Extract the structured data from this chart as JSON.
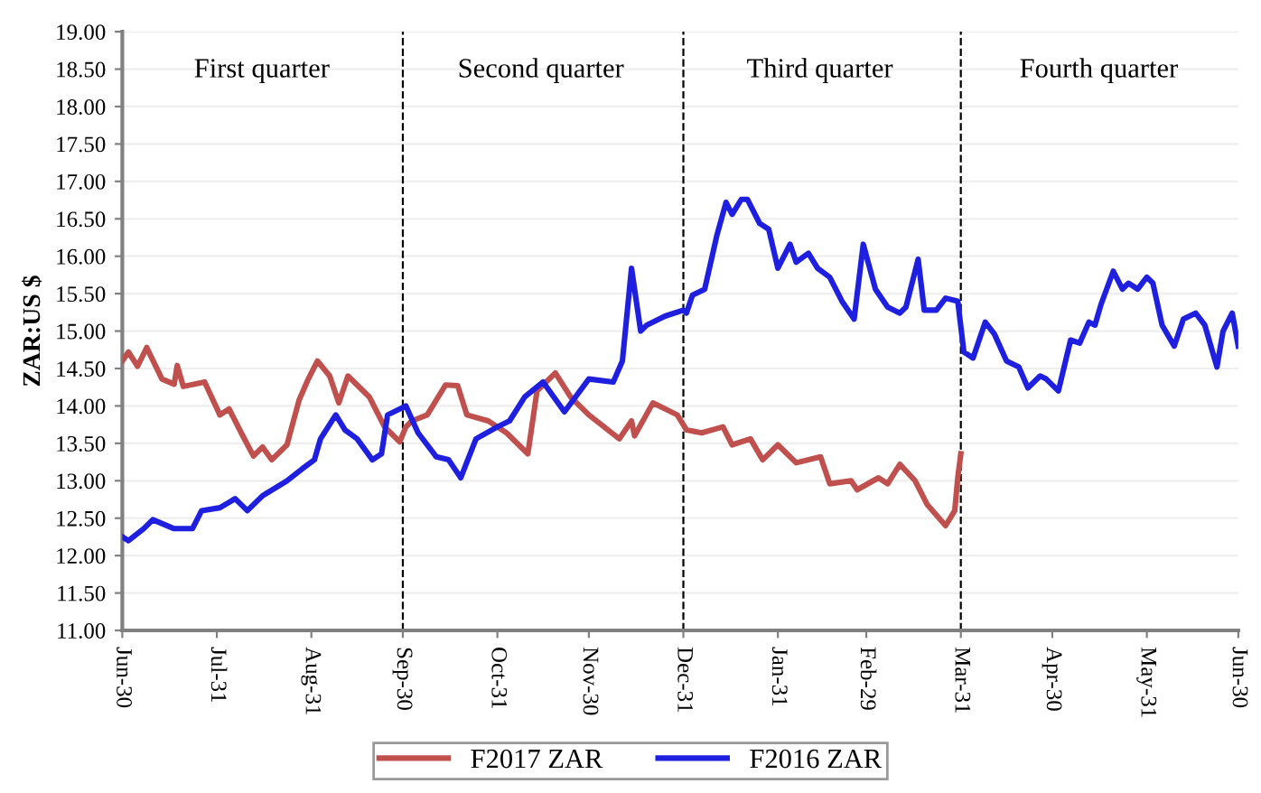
{
  "chart_data": {
    "type": "line",
    "ylabel": "ZAR:US $",
    "xlim": [
      "2015-06-30",
      "2016-06-30"
    ],
    "xticks": [
      {
        "value": "2015-06-30",
        "label": "Jun-30"
      },
      {
        "value": "2015-07-31",
        "label": "Jul-31"
      },
      {
        "value": "2015-08-31",
        "label": "Aug-31"
      },
      {
        "value": "2015-09-30",
        "label": "Sep-30"
      },
      {
        "value": "2015-10-31",
        "label": "Oct-31"
      },
      {
        "value": "2015-11-30",
        "label": "Nov-30"
      },
      {
        "value": "2015-12-31",
        "label": "Dec-31"
      },
      {
        "value": "2016-01-31",
        "label": "Jan-31"
      },
      {
        "value": "2016-02-29",
        "label": "Feb-29"
      },
      {
        "value": "2016-03-31",
        "label": "Mar-31"
      },
      {
        "value": "2016-04-30",
        "label": "Apr-30"
      },
      {
        "value": "2016-05-31",
        "label": "May-31"
      },
      {
        "value": "2016-06-30",
        "label": "Jun-30"
      }
    ],
    "ylim": [
      11,
      19
    ],
    "yticks": [
      {
        "value": 11,
        "label": "11.00"
      },
      {
        "value": 11.5,
        "label": "11.50"
      },
      {
        "value": 12,
        "label": "12.00"
      },
      {
        "value": 12.5,
        "label": "12.50"
      },
      {
        "value": 13,
        "label": "13.00"
      },
      {
        "value": 13.5,
        "label": "13.50"
      },
      {
        "value": 14,
        "label": "14.00"
      },
      {
        "value": 14.5,
        "label": "14.50"
      },
      {
        "value": 15,
        "label": "15.00"
      },
      {
        "value": 15.5,
        "label": "15.50"
      },
      {
        "value": 16,
        "label": "16.00"
      },
      {
        "value": 16.5,
        "label": "16.50"
      },
      {
        "value": 17,
        "label": "17.00"
      },
      {
        "value": 17.5,
        "label": "17.50"
      },
      {
        "value": 18,
        "label": "18.00"
      },
      {
        "value": 18.5,
        "label": "18.50"
      },
      {
        "value": 19,
        "label": "19.00"
      }
    ],
    "grid": "y",
    "legend": "bottom",
    "line_style": "solid",
    "ref_lines": [
      {
        "axis": "x",
        "value": "2015-09-30",
        "color": "#000000",
        "line_style": "dashed"
      },
      {
        "axis": "x",
        "value": "2015-12-31",
        "color": "#000000",
        "line_style": "dashed"
      },
      {
        "axis": "x",
        "value": "2016-03-31",
        "color": "#000000",
        "line_style": "dashed"
      }
    ],
    "annotations": [
      "First quarter",
      "Second quarter",
      "Third quarter",
      "Fourth quarter"
    ],
    "series": [
      {
        "name": "F2017 ZAR",
        "color": "#c0504d",
        "x": [
          "2015-06-30",
          "2015-07-02",
          "2015-07-05",
          "2015-07-08",
          "2015-07-13",
          "2015-07-17",
          "2015-07-18",
          "2015-07-20",
          "2015-07-27",
          "2015-08-01",
          "2015-08-04",
          "2015-08-08",
          "2015-08-12",
          "2015-08-15",
          "2015-08-18",
          "2015-08-23",
          "2015-08-27",
          "2015-08-30",
          "2015-09-02",
          "2015-09-06",
          "2015-09-09",
          "2015-09-12",
          "2015-09-19",
          "2015-09-24",
          "2015-09-29",
          "2015-10-01",
          "2015-10-03",
          "2015-10-08",
          "2015-10-14",
          "2015-10-18",
          "2015-10-21",
          "2015-10-28",
          "2015-11-03",
          "2015-11-10",
          "2015-11-13",
          "2015-11-19",
          "2015-11-24",
          "2015-11-30",
          "2015-12-10",
          "2015-12-14",
          "2015-12-15",
          "2015-12-21",
          "2015-12-29",
          "2016-01-01",
          "2016-01-06",
          "2016-01-13",
          "2016-01-16",
          "2016-01-22",
          "2016-01-26",
          "2016-01-31",
          "2016-02-06",
          "2016-02-14",
          "2016-02-17",
          "2016-02-24",
          "2016-02-26",
          "2016-03-04",
          "2016-03-07",
          "2016-03-11",
          "2016-03-16",
          "2016-03-20",
          "2016-03-26",
          "2016-03-29",
          "2016-03-30",
          "2016-03-31"
        ],
        "values": [
          14.6,
          14.72,
          14.53,
          14.78,
          14.36,
          14.29,
          14.54,
          14.26,
          14.32,
          13.88,
          13.96,
          13.64,
          13.33,
          13.45,
          13.28,
          13.48,
          14.08,
          14.36,
          14.6,
          14.4,
          14.04,
          14.4,
          14.12,
          13.72,
          13.52,
          13.72,
          13.8,
          13.88,
          14.28,
          14.27,
          13.88,
          13.8,
          13.64,
          13.36,
          14.2,
          14.44,
          14.12,
          13.88,
          13.56,
          13.8,
          13.6,
          14.04,
          13.88,
          13.68,
          13.64,
          13.72,
          13.48,
          13.56,
          13.28,
          13.48,
          13.24,
          13.32,
          12.96,
          13.0,
          12.88,
          13.04,
          12.96,
          13.22,
          13.0,
          12.68,
          12.4,
          12.6,
          13.04,
          13.36
        ]
      },
      {
        "name": "F2016 ZAR",
        "color": "#1f1fe0",
        "x": [
          "2015-06-30",
          "2015-07-02",
          "2015-07-07",
          "2015-07-10",
          "2015-07-17",
          "2015-07-23",
          "2015-07-26",
          "2015-08-01",
          "2015-08-06",
          "2015-08-10",
          "2015-08-15",
          "2015-08-23",
          "2015-08-28",
          "2015-09-01",
          "2015-09-03",
          "2015-09-08",
          "2015-09-11",
          "2015-09-15",
          "2015-09-20",
          "2015-09-23",
          "2015-09-25",
          "2015-10-01",
          "2015-10-05",
          "2015-10-11",
          "2015-10-15",
          "2015-10-19",
          "2015-10-24",
          "2015-10-31",
          "2015-11-04",
          "2015-11-09",
          "2015-11-15",
          "2015-11-22",
          "2015-11-30",
          "2015-12-08",
          "2015-12-11",
          "2015-12-14",
          "2015-12-17",
          "2015-12-19",
          "2015-12-25",
          "2015-12-31",
          "2016-01-01",
          "2016-01-03",
          "2016-01-07",
          "2016-01-11",
          "2016-01-14",
          "2016-01-16",
          "2016-01-19",
          "2016-01-21",
          "2016-01-25",
          "2016-01-28",
          "2016-01-31",
          "2016-02-04",
          "2016-02-06",
          "2016-02-10",
          "2016-02-13",
          "2016-02-17",
          "2016-02-21",
          "2016-02-25",
          "2016-02-28",
          "2016-03-03",
          "2016-03-07",
          "2016-03-11",
          "2016-03-13",
          "2016-03-17",
          "2016-03-19",
          "2016-03-23",
          "2016-03-26",
          "2016-03-30",
          "2016-04-01",
          "2016-04-04",
          "2016-04-08",
          "2016-04-11",
          "2016-04-15",
          "2016-04-19",
          "2016-04-22",
          "2016-04-26",
          "2016-04-28",
          "2016-05-02",
          "2016-05-06",
          "2016-05-09",
          "2016-05-12",
          "2016-05-14",
          "2016-05-16",
          "2016-05-20",
          "2016-05-23",
          "2016-05-25",
          "2016-05-28",
          "2016-05-31",
          "2016-06-02",
          "2016-06-05",
          "2016-06-09",
          "2016-06-12",
          "2016-06-16",
          "2016-06-19",
          "2016-06-23",
          "2016-06-25",
          "2016-06-28",
          "2016-06-30"
        ],
        "values": [
          12.25,
          12.2,
          12.36,
          12.48,
          12.36,
          12.36,
          12.6,
          12.64,
          12.76,
          12.6,
          12.8,
          13.0,
          13.16,
          13.28,
          13.56,
          13.88,
          13.68,
          13.56,
          13.28,
          13.36,
          13.88,
          14.0,
          13.64,
          13.32,
          13.28,
          13.04,
          13.56,
          13.72,
          13.8,
          14.12,
          14.32,
          13.92,
          14.36,
          14.32,
          14.6,
          15.84,
          15.0,
          15.08,
          15.2,
          15.28,
          15.24,
          15.48,
          15.56,
          16.28,
          16.72,
          16.56,
          16.76,
          16.76,
          16.44,
          16.36,
          15.84,
          16.16,
          15.92,
          16.04,
          15.84,
          15.72,
          15.4,
          15.16,
          16.16,
          15.56,
          15.32,
          15.24,
          15.32,
          15.96,
          15.28,
          15.28,
          15.44,
          15.4,
          14.72,
          14.64,
          15.12,
          14.96,
          14.6,
          14.52,
          14.24,
          14.4,
          14.36,
          14.2,
          14.88,
          14.84,
          15.12,
          15.08,
          15.36,
          15.8,
          15.56,
          15.64,
          15.56,
          15.72,
          15.64,
          15.08,
          14.8,
          15.16,
          15.24,
          15.08,
          14.52,
          15.0,
          15.24,
          14.8
        ]
      }
    ]
  }
}
